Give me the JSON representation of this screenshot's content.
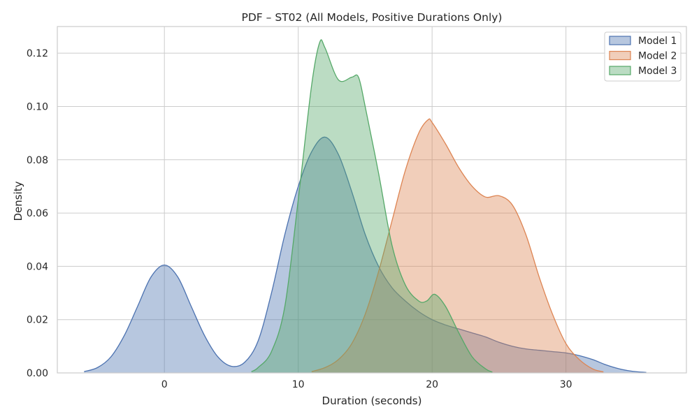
{
  "chart_data": {
    "type": "area",
    "title": "PDF – ST02 (All Models, Positive Durations Only)",
    "xlabel": "Duration (seconds)",
    "ylabel": "Density",
    "xlim": [
      -8,
      39
    ],
    "ylim": [
      0,
      0.13
    ],
    "x_ticks": [
      0,
      10,
      20,
      30
    ],
    "x_tick_labels": [
      "0",
      "10",
      "20",
      "30"
    ],
    "y_ticks": [
      0,
      0.02,
      0.04,
      0.06,
      0.08,
      0.1,
      0.12
    ],
    "y_tick_labels": [
      "0.00",
      "0.02",
      "0.04",
      "0.06",
      "0.08",
      "0.10",
      "0.12"
    ],
    "grid": true,
    "legend_position": "top-right",
    "series": [
      {
        "name": "Model 1",
        "color": "#4c72b0",
        "fill": "#4c72b0",
        "x": [
          -6,
          -5,
          -4,
          -3,
          -2,
          -1,
          0,
          1,
          2,
          3,
          4,
          5,
          6,
          7,
          8,
          9,
          10,
          11,
          12,
          13,
          14,
          15,
          16,
          17,
          18,
          19,
          20,
          21,
          22,
          23,
          24,
          25,
          26,
          27,
          28,
          29,
          30,
          31,
          32,
          33,
          34,
          35,
          36
        ],
        "y": [
          0.0005,
          0.002,
          0.006,
          0.014,
          0.025,
          0.036,
          0.0405,
          0.036,
          0.025,
          0.014,
          0.006,
          0.0025,
          0.004,
          0.012,
          0.03,
          0.052,
          0.07,
          0.083,
          0.0885,
          0.082,
          0.068,
          0.052,
          0.04,
          0.032,
          0.027,
          0.023,
          0.02,
          0.018,
          0.0165,
          0.015,
          0.0135,
          0.0115,
          0.01,
          0.009,
          0.0085,
          0.008,
          0.0075,
          0.0065,
          0.005,
          0.003,
          0.0015,
          0.0006,
          0.0002
        ]
      },
      {
        "name": "Model 2",
        "color": "#dd8452",
        "fill": "#dd8452",
        "x": [
          11,
          12,
          13,
          14,
          15,
          16,
          17,
          18,
          19,
          19.7,
          20,
          21,
          22,
          23,
          24,
          25,
          26,
          27,
          28,
          29,
          30,
          31,
          32,
          32.8
        ],
        "y": [
          0.0005,
          0.002,
          0.005,
          0.011,
          0.022,
          0.038,
          0.057,
          0.076,
          0.09,
          0.095,
          0.094,
          0.086,
          0.077,
          0.07,
          0.066,
          0.0665,
          0.063,
          0.052,
          0.036,
          0.022,
          0.011,
          0.005,
          0.0015,
          0.0004
        ]
      },
      {
        "name": "Model 3",
        "color": "#55a868",
        "fill": "#55a868",
        "x": [
          6.5,
          7,
          8,
          9,
          10,
          11,
          11.6,
          12,
          13,
          14,
          14.5,
          15,
          16,
          17,
          18,
          19,
          19.6,
          20.2,
          21,
          22,
          23,
          24,
          24.5
        ],
        "y": [
          0.0005,
          0.002,
          0.008,
          0.025,
          0.065,
          0.108,
          0.124,
          0.122,
          0.11,
          0.111,
          0.111,
          0.1,
          0.075,
          0.048,
          0.033,
          0.027,
          0.027,
          0.0295,
          0.025,
          0.015,
          0.006,
          0.0015,
          0.0003
        ]
      }
    ]
  }
}
